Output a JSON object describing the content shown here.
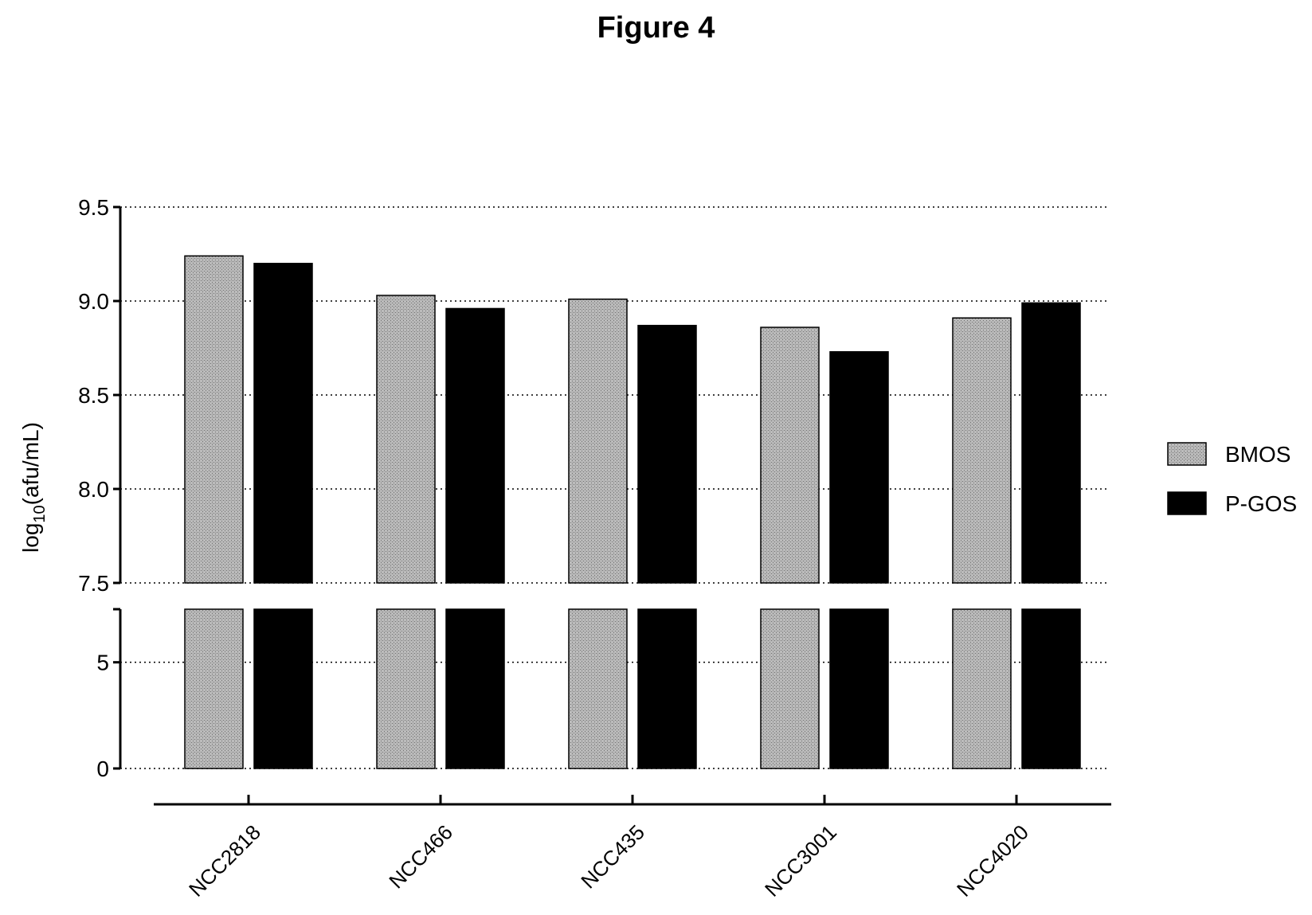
{
  "figure": {
    "title": "Figure 4"
  },
  "chart_data": {
    "type": "bar",
    "title": "Figure 4",
    "xlabel": "",
    "ylabel": "log10(afu/mL)",
    "ylabel_parts": {
      "base": "log",
      "sub": "10",
      "rest": "(afu/mL)"
    },
    "categories": [
      "NCC2818",
      "NCC466",
      "NCC435",
      "NCC3001",
      "NCC4020"
    ],
    "series": [
      {
        "name": "BMOS",
        "values": [
          9.24,
          9.03,
          9.01,
          8.86,
          8.91
        ],
        "color": "#a9a9a9",
        "pattern": "dotted-gray"
      },
      {
        "name": "P-GOS",
        "values": [
          9.2,
          8.96,
          8.87,
          8.73,
          8.99
        ],
        "color": "#000000"
      }
    ],
    "y_axis": {
      "broken": true,
      "lower_segment": {
        "range": [
          0,
          7.5
        ],
        "ticks": [
          "0",
          "5"
        ]
      },
      "upper_segment": {
        "range": [
          7.5,
          9.5
        ],
        "ticks": [
          "7.5",
          "8.0",
          "8.5",
          "9.0",
          "9.5"
        ]
      }
    },
    "grid": "horizontal dotted",
    "legend_position": "right"
  }
}
